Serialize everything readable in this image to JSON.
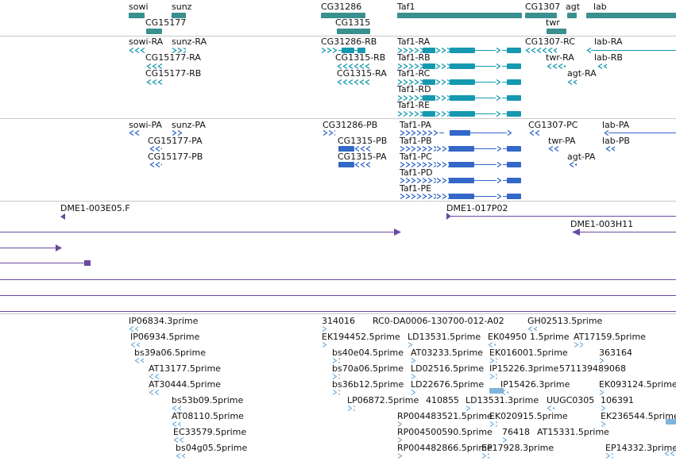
{
  "colors": {
    "gene": "#3a8f8f",
    "mrna": "#1699b0",
    "protein": "#3468c8",
    "clone": "#6a4aa0",
    "est": "#7fb4dc",
    "separator": "#c8c8c8"
  },
  "tracks": {
    "genes": {
      "labels": [
        "sowi",
        "sunz",
        "CG15177",
        "CG31286",
        "CG1315",
        "Taf1",
        "CG1307",
        "agt",
        "lab",
        "twr"
      ]
    },
    "mrna": {
      "labels": [
        "sowi-RA",
        "sunz-RA",
        "CG15177-RA",
        "CG15177-RB",
        "CG31286-RB",
        "CG1315-RB",
        "CG1315-RA",
        "Taf1-RA",
        "Taf1-RB",
        "Taf1-RC",
        "Taf1-RD",
        "Taf1-RE",
        "CG1307-RC",
        "lab-RA",
        "twr-RA",
        "lab-RB",
        "agt-RA"
      ]
    },
    "protein": {
      "labels": [
        "sowi-PA",
        "sunz-PA",
        "CG15177-PA",
        "CG15177-PB",
        "CG31286-PB",
        "CG1315-PB",
        "CG1315-PA",
        "Taf1-PA",
        "Taf1-PB",
        "Taf1-PC",
        "Taf1-PD",
        "Taf1-PE",
        "CG1307-PC",
        "lab-PA",
        "twr-PA",
        "lab-PB",
        "agt-PA"
      ]
    },
    "clones": {
      "labels": [
        "DME1-003E05.F",
        "DME1-017P02",
        "DME1-003H11"
      ]
    },
    "ests": {
      "labels": [
        "IP06834.3prime",
        "IP06934.5prime",
        "bs39a06.5prime",
        "AT13177.5prime",
        "AT30444.5prime",
        "bs53b09.5prime",
        "AT08110.5prime",
        "EC33579.5prime",
        "bs04g05.5prime",
        "314016",
        "RC0-DA0006-130700-012-A02",
        "GH02513.5prime",
        "EK194452.5prime",
        "LD13531.5prime",
        "EK04950",
        "1.5prime",
        "AT17159.5prime",
        "bs40e04.5prime",
        "AT03233.5prime",
        "EK016001.5prime",
        "363164",
        "bs70a06.5prime",
        "LD02516.5prime",
        "IP15226.3prime",
        "571139489068",
        "bs36b12.5prime",
        "LD22676.5prime",
        "IP15426.3prime",
        "EK093124.5prime",
        "LP06872.5prime",
        "410855",
        "LD13531.3prime",
        "UUGC0305",
        "106391",
        "RP004483521.5prime",
        "EK020915.5prime",
        "EK236544.5prime",
        "RP004500590.5prime",
        "76418",
        "AT15331.5prime",
        "RP004482866.5prime",
        "EP17928.3prime",
        "EP14332.3prime"
      ]
    }
  }
}
